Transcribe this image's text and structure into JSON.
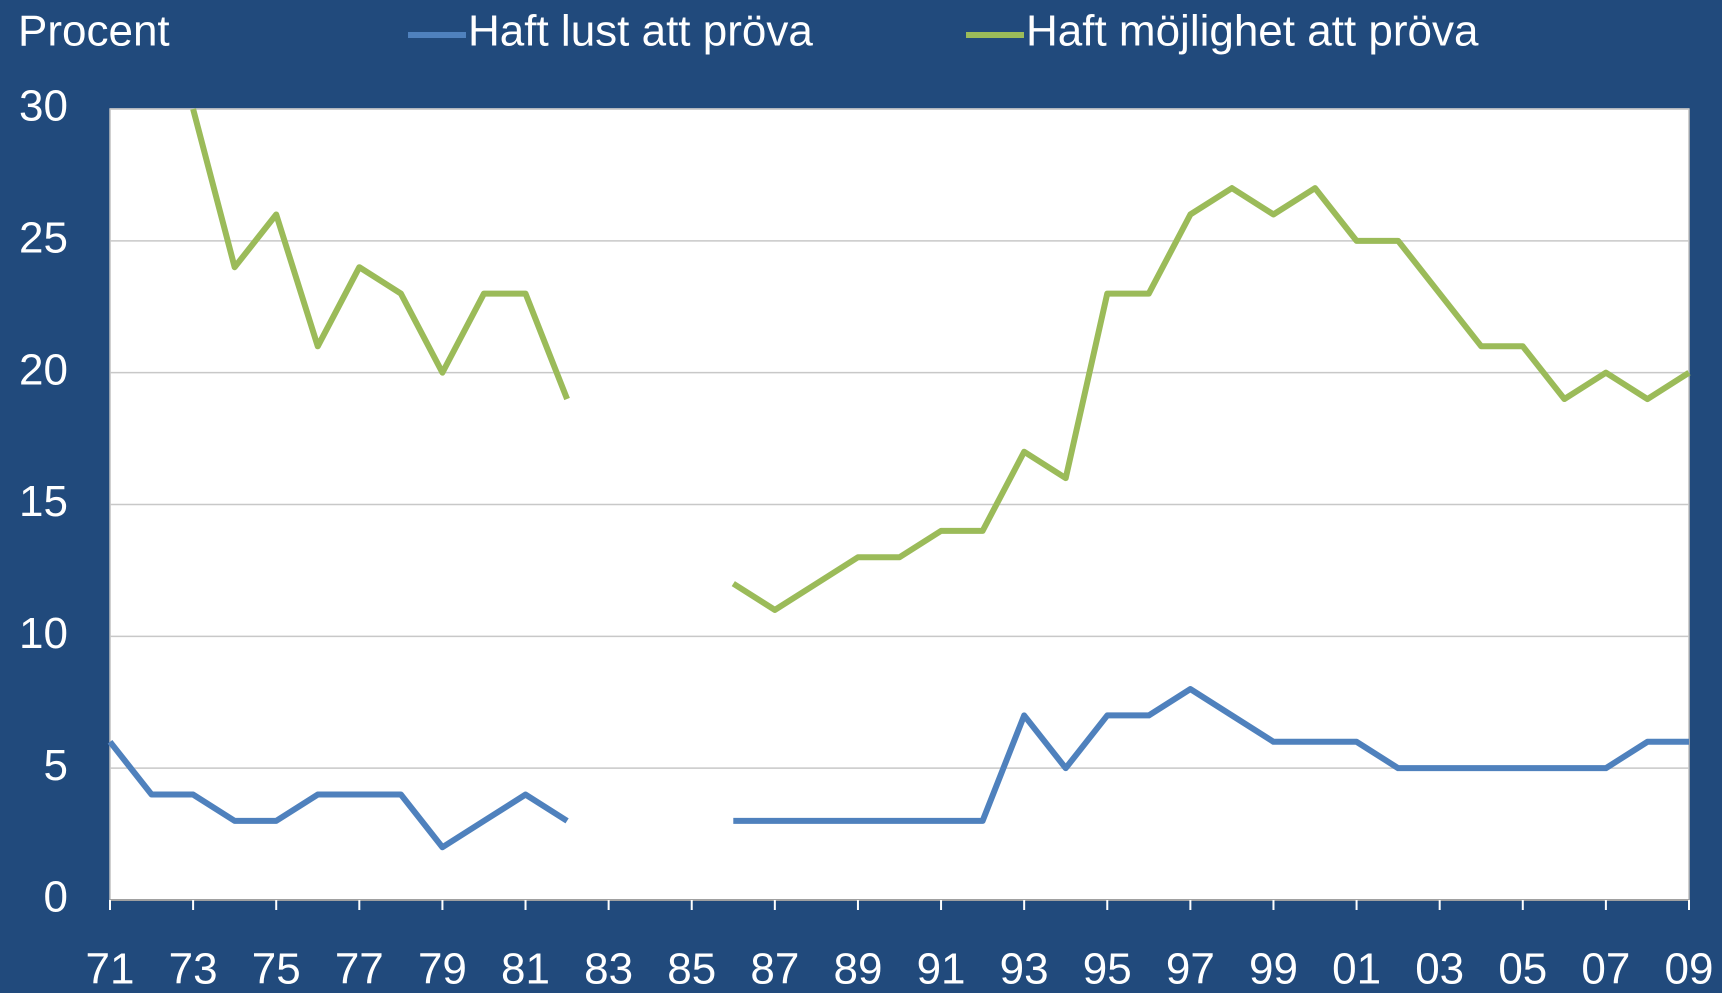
{
  "chart_data": {
    "type": "line",
    "y_label": "Procent",
    "categories": [
      "71",
      null,
      "73",
      null,
      "75",
      null,
      "77",
      null,
      "79",
      null,
      "81",
      null,
      "83",
      null,
      "85",
      null,
      "87",
      null,
      "89",
      null,
      "91",
      null,
      "93",
      null,
      "95",
      null,
      "97",
      null,
      "99",
      null,
      "01",
      null,
      "03",
      null,
      "05",
      null,
      "07",
      null,
      "09"
    ],
    "series": [
      {
        "name": "Haft lust att pröva",
        "color": "#4f81bd",
        "values": [
          6,
          4,
          4,
          3,
          3,
          4,
          4,
          4,
          2,
          3,
          4,
          3,
          null,
          null,
          null,
          3,
          3,
          3,
          3,
          3,
          3,
          3,
          7,
          5,
          7,
          7,
          8,
          7,
          6,
          6,
          6,
          5,
          5,
          5,
          5,
          5,
          5,
          6,
          6
        ]
      },
      {
        "name": "Haft möjlighet att pröva",
        "color": "#9bbb59",
        "values": [
          null,
          null,
          30,
          24,
          26,
          21,
          24,
          23,
          20,
          23,
          23,
          19,
          null,
          null,
          null,
          12,
          11,
          12,
          13,
          13,
          14,
          14,
          17,
          16,
          23,
          23,
          26,
          27,
          26,
          27,
          25,
          25,
          23,
          21,
          21,
          19,
          20,
          19,
          20
        ]
      }
    ],
    "ylim": [
      0,
      30
    ],
    "yticks": [
      0,
      5,
      10,
      15,
      20,
      25,
      30
    ],
    "grid": true
  }
}
